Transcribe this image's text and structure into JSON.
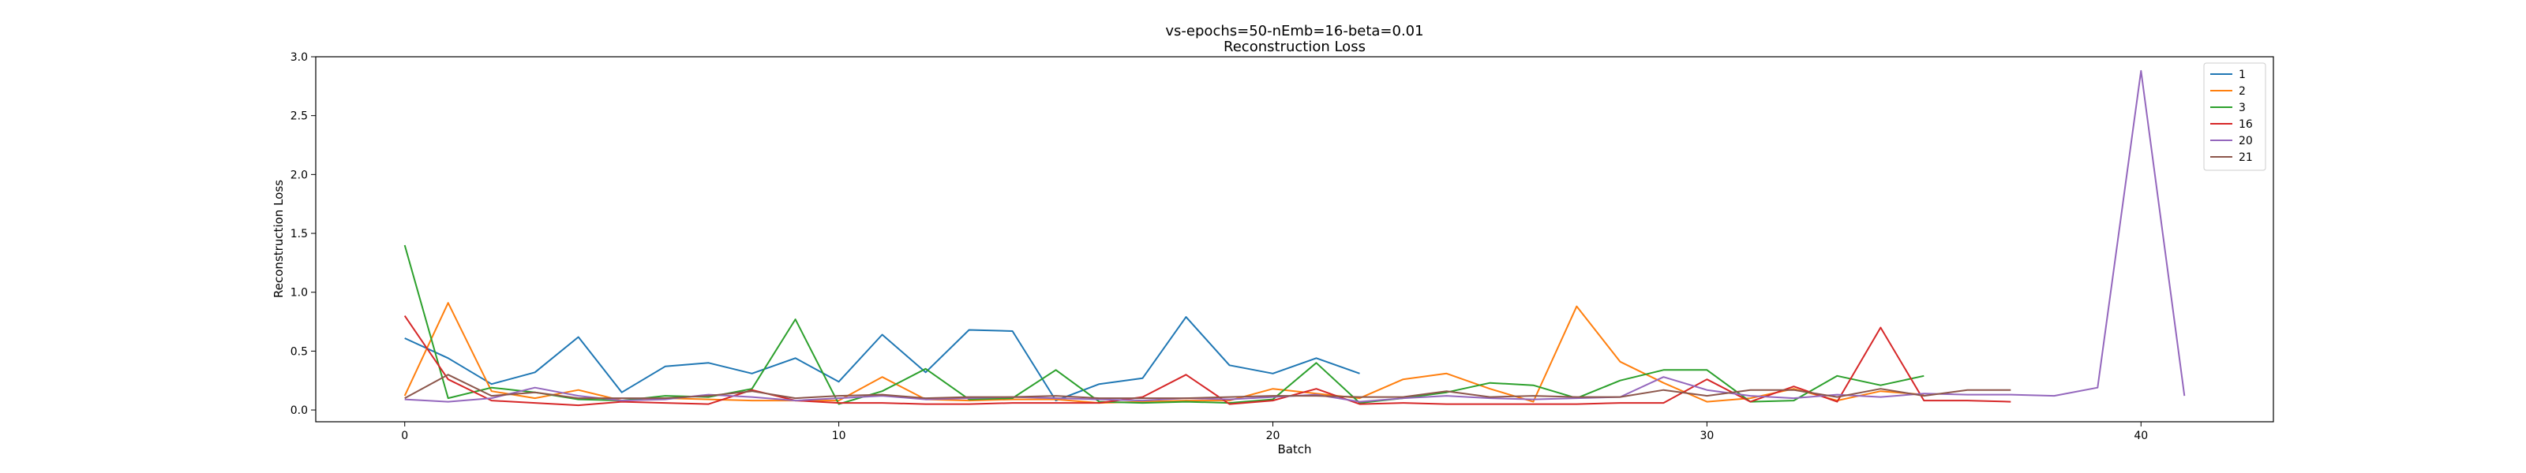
{
  "chart_data": {
    "type": "line",
    "title": "vs-epochs=50-nEmb=16-beta=0.01",
    "subtitle": "Reconstruction Loss",
    "xlabel": "Batch",
    "ylabel": "Reconstruction Loss",
    "xlim": [
      -2.05,
      43.05
    ],
    "ylim": [
      -0.1,
      3.0
    ],
    "xticks": [
      0,
      10,
      20,
      30,
      40
    ],
    "xtick_labels": [
      "0",
      "10",
      "20",
      "30",
      "40"
    ],
    "yticks": [
      0.0,
      0.5,
      1.0,
      1.5,
      2.0,
      2.5,
      3.0
    ],
    "ytick_labels": [
      "0.0",
      "0.5",
      "1.0",
      "1.5",
      "2.0",
      "2.5",
      "3.0"
    ],
    "grid": false,
    "legend_position": "top-right",
    "series": [
      {
        "name": "1",
        "color": "#1f77b4",
        "x": [
          0,
          1,
          2,
          3,
          4,
          5,
          6,
          7,
          8,
          9,
          10,
          11,
          12,
          13,
          14,
          15,
          16,
          17,
          18,
          19,
          20,
          21,
          22
        ],
        "values": [
          0.61,
          0.44,
          0.22,
          0.32,
          0.62,
          0.15,
          0.37,
          0.4,
          0.31,
          0.44,
          0.24,
          0.64,
          0.32,
          0.68,
          0.67,
          0.08,
          0.22,
          0.27,
          0.79,
          0.38,
          0.31,
          0.44,
          0.31
        ]
      },
      {
        "name": "2",
        "color": "#ff7f0e",
        "x": [
          0,
          1,
          2,
          3,
          4,
          5,
          6,
          7,
          8,
          9,
          10,
          11,
          12,
          13,
          14,
          15,
          16,
          17,
          18,
          19,
          20,
          21,
          22,
          23,
          24,
          25,
          26,
          27,
          28,
          29,
          30,
          31,
          32,
          33,
          34,
          35
        ],
        "values": [
          0.12,
          0.91,
          0.16,
          0.1,
          0.17,
          0.08,
          0.1,
          0.09,
          0.08,
          0.08,
          0.08,
          0.28,
          0.09,
          0.08,
          0.09,
          0.09,
          0.06,
          0.07,
          0.08,
          0.08,
          0.18,
          0.14,
          0.1,
          0.26,
          0.31,
          0.18,
          0.07,
          0.88,
          0.41,
          0.23,
          0.07,
          0.1,
          0.18,
          0.08,
          0.16,
          0.13
        ]
      },
      {
        "name": "3",
        "color": "#2ca02c",
        "x": [
          0,
          1,
          2,
          3,
          4,
          5,
          6,
          7,
          8,
          9,
          10,
          11,
          12,
          13,
          14,
          15,
          16,
          17,
          18,
          19,
          20,
          21,
          22,
          23,
          24,
          25,
          26,
          27,
          28,
          29,
          30,
          31,
          32,
          33,
          34,
          35
        ],
        "values": [
          1.4,
          0.1,
          0.19,
          0.15,
          0.09,
          0.08,
          0.12,
          0.11,
          0.18,
          0.77,
          0.05,
          0.16,
          0.35,
          0.09,
          0.1,
          0.34,
          0.07,
          0.06,
          0.07,
          0.06,
          0.09,
          0.4,
          0.06,
          0.1,
          0.15,
          0.23,
          0.21,
          0.1,
          0.25,
          0.34,
          0.34,
          0.07,
          0.08,
          0.29,
          0.21,
          0.29
        ]
      },
      {
        "name": "16",
        "color": "#d62728",
        "x": [
          0,
          1,
          2,
          3,
          4,
          5,
          6,
          7,
          8,
          9,
          10,
          11,
          12,
          13,
          14,
          15,
          16,
          17,
          18,
          19,
          20,
          21,
          22,
          23,
          24,
          25,
          26,
          27,
          28,
          29,
          30,
          31,
          32,
          33,
          34,
          35,
          36,
          37
        ],
        "values": [
          0.8,
          0.26,
          0.08,
          0.06,
          0.04,
          0.07,
          0.06,
          0.05,
          0.17,
          0.08,
          0.06,
          0.06,
          0.05,
          0.05,
          0.06,
          0.06,
          0.06,
          0.11,
          0.3,
          0.05,
          0.08,
          0.18,
          0.05,
          0.06,
          0.05,
          0.05,
          0.05,
          0.05,
          0.06,
          0.06,
          0.26,
          0.07,
          0.2,
          0.07,
          0.7,
          0.08,
          0.08,
          0.07
        ]
      },
      {
        "name": "20",
        "color": "#9467bd",
        "x": [
          0,
          1,
          2,
          3,
          4,
          5,
          6,
          7,
          8,
          9,
          10,
          11,
          12,
          13,
          14,
          15,
          16,
          17,
          18,
          19,
          20,
          21,
          22,
          23,
          24,
          25,
          26,
          27,
          28,
          29,
          30,
          31,
          32,
          33,
          34,
          35,
          36,
          37,
          38,
          39,
          40,
          41
        ],
        "values": [
          0.09,
          0.07,
          0.1,
          0.19,
          0.12,
          0.08,
          0.09,
          0.13,
          0.11,
          0.08,
          0.1,
          0.12,
          0.09,
          0.1,
          0.11,
          0.1,
          0.09,
          0.08,
          0.1,
          0.09,
          0.11,
          0.13,
          0.07,
          0.1,
          0.12,
          0.1,
          0.09,
          0.1,
          0.11,
          0.28,
          0.17,
          0.12,
          0.1,
          0.13,
          0.11,
          0.14,
          0.13,
          0.13,
          0.12,
          0.19,
          2.88,
          0.12
        ]
      },
      {
        "name": "21",
        "color": "#8c564b",
        "x": [
          0,
          1,
          2,
          3,
          4,
          5,
          6,
          7,
          8,
          9,
          10,
          11,
          12,
          13,
          14,
          15,
          16,
          17,
          18,
          19,
          20,
          21,
          22,
          23,
          24,
          25,
          26,
          27,
          28,
          29,
          30,
          31,
          32,
          33,
          34,
          35,
          36,
          37
        ],
        "values": [
          0.1,
          0.3,
          0.12,
          0.15,
          0.1,
          0.1,
          0.1,
          0.12,
          0.16,
          0.1,
          0.12,
          0.13,
          0.1,
          0.11,
          0.11,
          0.12,
          0.1,
          0.1,
          0.1,
          0.11,
          0.12,
          0.12,
          0.11,
          0.11,
          0.16,
          0.11,
          0.12,
          0.11,
          0.11,
          0.17,
          0.12,
          0.17,
          0.17,
          0.11,
          0.18,
          0.12,
          0.17,
          0.17
        ]
      }
    ]
  }
}
